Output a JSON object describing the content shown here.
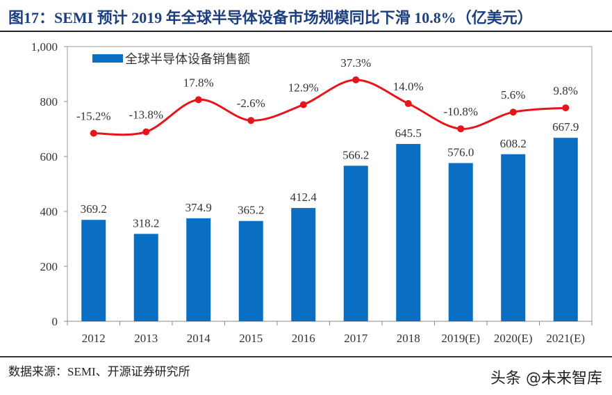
{
  "title": "图17：SEMI 预计 2019 年全球半导体设备市场规模同比下滑 10.8%（亿美元）",
  "source": "数据来源：SEMI、开源证券研究所",
  "watermark": "头条 @未来智库",
  "chart_data": {
    "type": "bar+line",
    "categories": [
      "2012",
      "2013",
      "2014",
      "2015",
      "2016",
      "2017",
      "2018",
      "2019(E)",
      "2020(E)",
      "2021(E)"
    ],
    "series": [
      {
        "name": "全球半导体设备销售额",
        "type": "bar",
        "color": "#0a6fc2",
        "values": [
          369.2,
          318.2,
          374.9,
          365.2,
          412.4,
          566.2,
          645.5,
          576.0,
          608.2,
          667.9
        ],
        "labels": [
          "369.2",
          "318.2",
          "374.9",
          "365.2",
          "412.4",
          "566.2",
          "645.5",
          "576.0",
          "608.2",
          "667.9"
        ]
      },
      {
        "type": "line",
        "color": "#e8141b",
        "axis": "secondary-hidden",
        "values": [
          -15.2,
          -13.8,
          17.8,
          -2.6,
          12.9,
          37.3,
          14.0,
          -10.8,
          5.6,
          9.8
        ],
        "labels": [
          "-15.2%",
          "-13.8%",
          "17.8%",
          "-2.6%",
          "12.9%",
          "37.3%",
          "14.0%",
          "-10.8%",
          "5.6%",
          "9.8%"
        ]
      }
    ],
    "ylim": [
      0,
      1000
    ],
    "yticks": [
      "0",
      "200",
      "400",
      "600",
      "800",
      "1,000"
    ],
    "y2lim": [
      -200,
      70
    ],
    "legend": "top-left",
    "grid": false
  }
}
